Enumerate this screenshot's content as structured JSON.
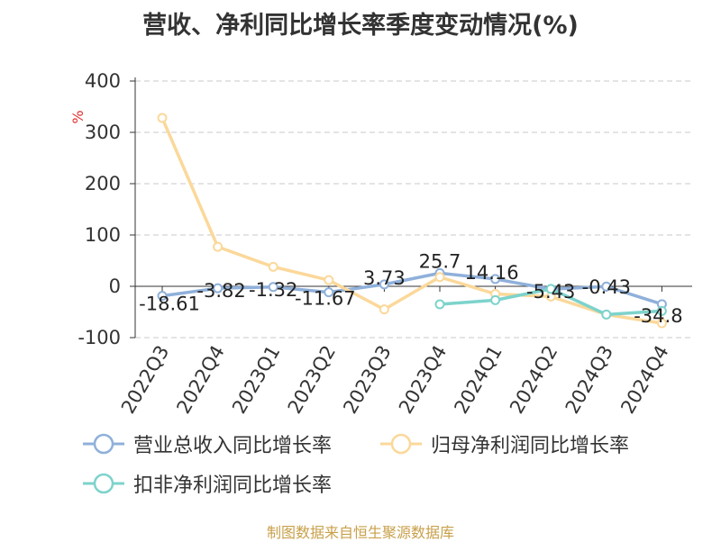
{
  "chart_data": {
    "type": "line",
    "title": "营收、净利同比增长率季度变动情况(%)",
    "ylabel": "%",
    "xlabel": "",
    "ylim": [
      -100,
      400
    ],
    "yticks": [
      400,
      300,
      200,
      100,
      0,
      -100
    ],
    "grid": true,
    "legend_position": "bottom",
    "categories": [
      "2022Q3",
      "2022Q4",
      "2023Q1",
      "2023Q2",
      "2023Q3",
      "2023Q4",
      "2024Q1",
      "2024Q2",
      "2024Q3",
      "2024Q4"
    ],
    "series": [
      {
        "name": "营业总收入同比增长率",
        "color": "#8fb0da",
        "values": [
          -18.61,
          -3.82,
          -1.32,
          -11.67,
          3.73,
          25.7,
          14.16,
          -5.43,
          -0.43,
          -34.8
        ],
        "labels": [
          "-18.61",
          "-3.82",
          "-1.32",
          "-11.67",
          "3.73",
          "25.7",
          "14.16",
          "-5.43",
          "-0.43",
          "-34.8"
        ]
      },
      {
        "name": "归母净利润同比增长率",
        "color": "#fbd89a",
        "values": [
          328,
          77,
          38,
          12,
          -45,
          18,
          -15,
          -20,
          -55,
          -72
        ]
      },
      {
        "name": "扣非净利润同比增长率",
        "color": "#7dd3cc",
        "values": [
          null,
          null,
          null,
          null,
          null,
          -35,
          -27,
          -5,
          -55,
          -48
        ]
      }
    ]
  },
  "source": "制图数据来自恒生聚源数据库"
}
